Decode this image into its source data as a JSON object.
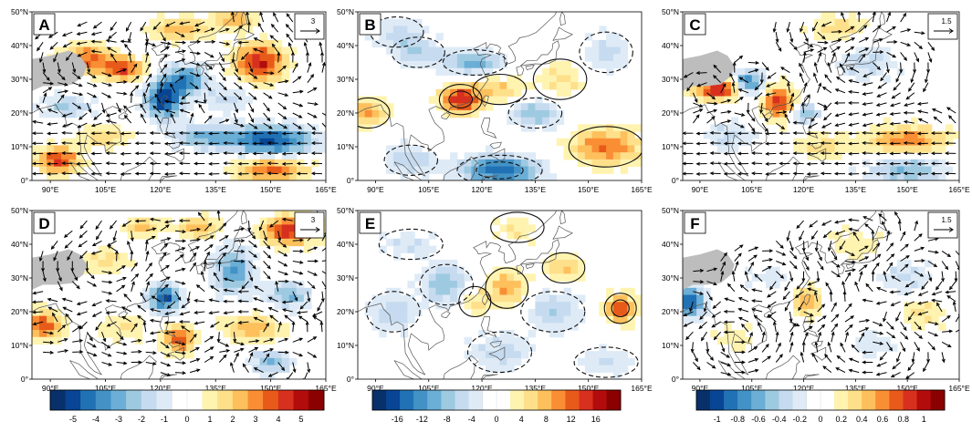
{
  "chart_data": [
    {
      "type": "heatmap",
      "panel": "A",
      "title": "A",
      "lon_ticks": [
        "90°E",
        "105°E",
        "120°E",
        "135°E",
        "150°E",
        "165°E"
      ],
      "lat_ticks": [
        "0°",
        "10°N",
        "20°N",
        "30°N",
        "40°N",
        "50°N"
      ],
      "xlim": [
        85,
        165
      ],
      "ylim": [
        0,
        50
      ],
      "vector_ref": "3",
      "contours": false,
      "vectors": true,
      "anomalies": [
        {
          "lon": 100,
          "lat": 36,
          "sx": 5,
          "sy": 3,
          "v": 3.2
        },
        {
          "lon": 110,
          "lat": 33,
          "sx": 4,
          "sy": 2.5,
          "v": 3.5
        },
        {
          "lon": 121,
          "lat": 24,
          "sx": 3.5,
          "sy": 4,
          "v": -4.8
        },
        {
          "lon": 127,
          "lat": 30,
          "sx": 4,
          "sy": 3,
          "v": -3.5
        },
        {
          "lon": 147,
          "lat": 35,
          "sx": 5,
          "sy": 4,
          "v": 4.2
        },
        {
          "lon": 125,
          "lat": 45,
          "sx": 6,
          "sy": 2.5,
          "v": 2.2
        },
        {
          "lon": 140,
          "lat": 48,
          "sx": 4,
          "sy": 2,
          "v": 2.5
        },
        {
          "lon": 92,
          "lat": 6,
          "sx": 4,
          "sy": 3,
          "v": 3.8
        },
        {
          "lon": 105,
          "lat": 13,
          "sx": 5,
          "sy": 2.5,
          "v": 1.8
        },
        {
          "lon": 150,
          "lat": 12,
          "sx": 8,
          "sy": 3,
          "v": -4.5
        },
        {
          "lon": 132,
          "lat": 13,
          "sx": 6,
          "sy": 2.5,
          "v": -2.5
        },
        {
          "lon": 150,
          "lat": 3,
          "sx": 7,
          "sy": 2.5,
          "v": 3.2
        },
        {
          "lon": 95,
          "lat": 22,
          "sx": 5,
          "sy": 2.5,
          "v": -2.0
        },
        {
          "lon": 138,
          "lat": 24,
          "sx": 5,
          "sy": 3,
          "v": -1.5
        }
      ]
    },
    {
      "type": "heatmap",
      "panel": "B",
      "title": "B",
      "lon_ticks": [
        "90°E",
        "105°E",
        "120°E",
        "135°E",
        "150°E",
        "165°E"
      ],
      "lat_ticks": [
        "0°",
        "10°N",
        "20°N",
        "30°N",
        "40°N",
        "50°N"
      ],
      "xlim": [
        85,
        165
      ],
      "ylim": [
        0,
        50
      ],
      "vector_ref": "",
      "contours": true,
      "vectors": false,
      "anomalies": [
        {
          "lon": 114,
          "lat": 24,
          "sx": 4,
          "sy": 3,
          "v": 14
        },
        {
          "lon": 125,
          "lat": 27,
          "sx": 5,
          "sy": 3,
          "v": 6
        },
        {
          "lon": 88,
          "lat": 20,
          "sx": 4,
          "sy": 3,
          "v": 8
        },
        {
          "lon": 118,
          "lat": 35,
          "sx": 6,
          "sy": 2.5,
          "v": -9
        },
        {
          "lon": 102,
          "lat": 38,
          "sx": 5,
          "sy": 3,
          "v": -6
        },
        {
          "lon": 125,
          "lat": 3,
          "sx": 8,
          "sy": 3,
          "v": -14
        },
        {
          "lon": 100,
          "lat": 6,
          "sx": 5,
          "sy": 3,
          "v": -6
        },
        {
          "lon": 135,
          "lat": 20,
          "sx": 5,
          "sy": 3,
          "v": -8
        },
        {
          "lon": 155,
          "lat": 10,
          "sx": 7,
          "sy": 4,
          "v": 10
        },
        {
          "lon": 142,
          "lat": 30,
          "sx": 5,
          "sy": 4,
          "v": 5
        },
        {
          "lon": 155,
          "lat": 38,
          "sx": 5,
          "sy": 4,
          "v": -5
        },
        {
          "lon": 96,
          "lat": 44,
          "sx": 5,
          "sy": 3,
          "v": -5
        }
      ]
    },
    {
      "type": "heatmap",
      "panel": "C",
      "title": "C",
      "lon_ticks": [
        "90°E",
        "105°E",
        "120°E",
        "135°E",
        "150°E",
        "165°E"
      ],
      "lat_ticks": [
        "0°",
        "10°N",
        "20°N",
        "30°N",
        "40°N",
        "50°N"
      ],
      "xlim": [
        85,
        165
      ],
      "ylim": [
        0,
        50
      ],
      "vector_ref": "1.5",
      "contours": false,
      "vectors": true,
      "anomalies": [
        {
          "lon": 95,
          "lat": 27,
          "sx": 5,
          "sy": 2,
          "v": 0.9
        },
        {
          "lon": 113,
          "lat": 23,
          "sx": 3.5,
          "sy": 3.5,
          "v": 0.8
        },
        {
          "lon": 104,
          "lat": 29,
          "sx": 3,
          "sy": 2.5,
          "v": -0.8
        },
        {
          "lon": 120,
          "lat": 20,
          "sx": 3,
          "sy": 2.5,
          "v": -0.5
        },
        {
          "lon": 150,
          "lat": 12,
          "sx": 8,
          "sy": 3,
          "v": 0.6
        },
        {
          "lon": 125,
          "lat": 10,
          "sx": 6,
          "sy": 3,
          "v": 0.3
        },
        {
          "lon": 150,
          "lat": 3,
          "sx": 8,
          "sy": 3,
          "v": -0.5
        },
        {
          "lon": 138,
          "lat": 35,
          "sx": 6,
          "sy": 4,
          "v": -0.3
        },
        {
          "lon": 98,
          "lat": 13,
          "sx": 5,
          "sy": 3,
          "v": -0.3
        },
        {
          "lon": 130,
          "lat": 45,
          "sx": 6,
          "sy": 3,
          "v": 0.3
        }
      ]
    },
    {
      "type": "heatmap",
      "panel": "D",
      "title": "D",
      "lon_ticks": [
        "90°E",
        "105°E",
        "120°E",
        "135°E",
        "150°E",
        "165°E"
      ],
      "lat_ticks": [
        "0°",
        "10°N",
        "20°N",
        "30°N",
        "40°N",
        "50°N"
      ],
      "xlim": [
        85,
        165
      ],
      "ylim": [
        0,
        50
      ],
      "vector_ref": "3",
      "contours": false,
      "vectors": true,
      "anomalies": [
        {
          "lon": 121,
          "lat": 24,
          "sx": 3,
          "sy": 3,
          "v": -4.5
        },
        {
          "lon": 155,
          "lat": 44,
          "sx": 5,
          "sy": 3,
          "v": 4.2
        },
        {
          "lon": 88,
          "lat": 16,
          "sx": 4,
          "sy": 3,
          "v": 3.5
        },
        {
          "lon": 125,
          "lat": 12,
          "sx": 3,
          "sy": 3,
          "v": 3.5
        },
        {
          "lon": 140,
          "lat": 32,
          "sx": 4,
          "sy": 5,
          "v": -3
        },
        {
          "lon": 155,
          "lat": 25,
          "sx": 4,
          "sy": 3,
          "v": -2.5
        },
        {
          "lon": 130,
          "lat": 45,
          "sx": 4,
          "sy": 2.5,
          "v": 2.2
        },
        {
          "lon": 145,
          "lat": 15,
          "sx": 6,
          "sy": 3,
          "v": 2.3
        },
        {
          "lon": 105,
          "lat": 35,
          "sx": 5,
          "sy": 3,
          "v": 1.5
        },
        {
          "lon": 150,
          "lat": 5,
          "sx": 4,
          "sy": 2.5,
          "v": -2.5
        },
        {
          "lon": 110,
          "lat": 15,
          "sx": 5,
          "sy": 3,
          "v": 1.3
        },
        {
          "lon": 115,
          "lat": 45,
          "sx": 4,
          "sy": 2,
          "v": 2.0
        }
      ]
    },
    {
      "type": "heatmap",
      "panel": "E",
      "title": "E",
      "lon_ticks": [
        "90°E",
        "105°E",
        "120°E",
        "135°E",
        "150°E",
        "165°E"
      ],
      "lat_ticks": [
        "0°",
        "10°N",
        "20°N",
        "30°N",
        "40°N",
        "50°N"
      ],
      "xlim": [
        85,
        165
      ],
      "ylim": [
        0,
        50
      ],
      "vector_ref": "",
      "contours": true,
      "vectors": false,
      "anomalies": [
        {
          "lon": 127,
          "lat": 27,
          "sx": 4,
          "sy": 4,
          "v": 8
        },
        {
          "lon": 159,
          "lat": 21,
          "sx": 3,
          "sy": 3,
          "v": 12
        },
        {
          "lon": 143,
          "lat": 33,
          "sx": 4,
          "sy": 3,
          "v": 6
        },
        {
          "lon": 118,
          "lat": 23,
          "sx": 3,
          "sy": 3,
          "v": 5
        },
        {
          "lon": 110,
          "lat": 28,
          "sx": 5,
          "sy": 4,
          "v": -8
        },
        {
          "lon": 95,
          "lat": 20,
          "sx": 5,
          "sy": 4,
          "v": -6
        },
        {
          "lon": 140,
          "lat": 20,
          "sx": 6,
          "sy": 4,
          "v": -6
        },
        {
          "lon": 125,
          "lat": 8,
          "sx": 6,
          "sy": 4,
          "v": -5
        },
        {
          "lon": 155,
          "lat": 5,
          "sx": 6,
          "sy": 3,
          "v": -4
        },
        {
          "lon": 100,
          "lat": 40,
          "sx": 6,
          "sy": 3,
          "v": -4
        },
        {
          "lon": 130,
          "lat": 45,
          "sx": 5,
          "sy": 3,
          "v": 4
        }
      ]
    },
    {
      "type": "heatmap",
      "panel": "F",
      "title": "F",
      "lon_ticks": [
        "90°E",
        "105°E",
        "120°E",
        "135°E",
        "150°E",
        "165°E"
      ],
      "lat_ticks": [
        "0°",
        "10°N",
        "20°N",
        "30°N",
        "40°N",
        "50°N"
      ],
      "xlim": [
        85,
        165
      ],
      "ylim": [
        0,
        50
      ],
      "vector_ref": "1.5",
      "contours": false,
      "vectors": true,
      "anomalies": [
        {
          "lon": 87,
          "lat": 23,
          "sx": 3,
          "sy": 3,
          "v": -0.9
        },
        {
          "lon": 121,
          "lat": 23,
          "sx": 3,
          "sy": 3,
          "v": 0.5
        },
        {
          "lon": 150,
          "lat": 30,
          "sx": 5,
          "sy": 4,
          "v": -0.3
        },
        {
          "lon": 155,
          "lat": 20,
          "sx": 5,
          "sy": 3,
          "v": 0.3
        },
        {
          "lon": 110,
          "lat": 30,
          "sx": 5,
          "sy": 3,
          "v": -0.2
        },
        {
          "lon": 135,
          "lat": 40,
          "sx": 6,
          "sy": 3,
          "v": 0.25
        },
        {
          "lon": 100,
          "lat": 12,
          "sx": 5,
          "sy": 3,
          "v": 0.2
        },
        {
          "lon": 140,
          "lat": 10,
          "sx": 6,
          "sy": 3,
          "v": -0.2
        }
      ]
    }
  ],
  "colorbars": [
    {
      "name": "colorbar-1",
      "labels": [
        "-5",
        "-4",
        "-3",
        "-2",
        "-1",
        "0",
        "1",
        "2",
        "3",
        "4",
        "5"
      ],
      "min": -5.5,
      "max": 5.5
    },
    {
      "name": "colorbar-2",
      "labels": [
        "-16",
        "-12",
        "-8",
        "-4",
        "0",
        "4",
        "8",
        "12",
        "16"
      ],
      "min": -18,
      "max": 18
    },
    {
      "name": "colorbar-3",
      "labels": [
        "-1",
        "-0.8",
        "-0.6",
        "-0.4",
        "-0.2",
        "0",
        "0.2",
        "0.4",
        "0.6",
        "0.8",
        "1"
      ],
      "min": -1.1,
      "max": 1.1
    }
  ],
  "palette": [
    "#08306b",
    "#084594",
    "#2171b5",
    "#4292c6",
    "#6baed6",
    "#9ecae1",
    "#c6dbef",
    "#deebf7",
    "#ffffff",
    "#ffffff",
    "#fff3b0",
    "#fee08b",
    "#fdc05c",
    "#f98e35",
    "#e85a1a",
    "#d7301f",
    "#b30c0c",
    "#8b0000"
  ],
  "land_color": "#bdbdbd",
  "vector_color": "#000000"
}
